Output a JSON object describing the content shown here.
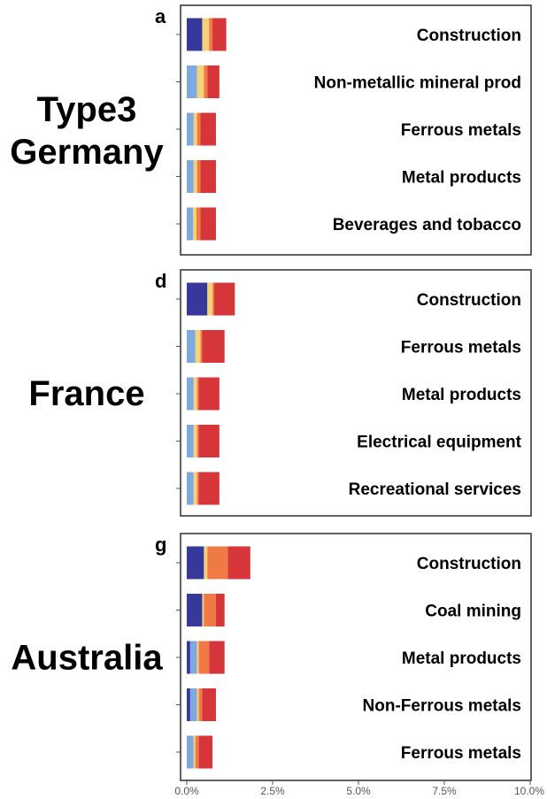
{
  "chart_data": {
    "type": "bar",
    "stacked": true,
    "orientation": "horizontal",
    "x_axis": {
      "min": 0,
      "max": 10,
      "ticks": [
        0,
        2.5,
        5,
        7.5,
        10
      ],
      "tick_labels": [
        "0.0%",
        "2.5%",
        "5.0%",
        "7.5%",
        "10.0%"
      ]
    },
    "segment_colors": [
      "#37399a",
      "#7ea8e0",
      "#f4d27a",
      "#ef7a45",
      "#d6363a"
    ],
    "grid": false,
    "legend": "none",
    "panels": [
      {
        "letter": "a",
        "label_lines": [
          "Type3",
          "Germany"
        ],
        "categories": [
          "Construction",
          "Non-metallic mineral prod",
          "Ferrous metals",
          "Metal products",
          "Beverages and tobacco"
        ],
        "segments": [
          [
            0.45,
            0,
            0.2,
            0.1,
            0.4
          ],
          [
            0,
            0.3,
            0.2,
            0.1,
            0.35
          ],
          [
            0,
            0.2,
            0.1,
            0.1,
            0.45
          ],
          [
            0,
            0.2,
            0.1,
            0.1,
            0.45
          ],
          [
            0,
            0.18,
            0.1,
            0.12,
            0.45
          ]
        ]
      },
      {
        "letter": "d",
        "label_lines": [
          "France"
        ],
        "categories": [
          "Construction",
          "Ferrous metals",
          "Metal products",
          "Electrical equipment",
          "Recreational services"
        ],
        "segments": [
          [
            0.6,
            0,
            0.15,
            0.05,
            0.6
          ],
          [
            0,
            0.25,
            0.15,
            0.05,
            0.65
          ],
          [
            0,
            0.2,
            0.1,
            0.05,
            0.6
          ],
          [
            0,
            0.2,
            0.1,
            0.05,
            0.6
          ],
          [
            0,
            0.2,
            0.1,
            0.05,
            0.6
          ]
        ]
      },
      {
        "letter": "g",
        "label_lines": [
          "Australia"
        ],
        "categories": [
          "Construction",
          "Coal mining",
          "Metal products",
          "Non-Ferrous metals",
          "Ferrous metals"
        ],
        "segments": [
          [
            0.5,
            0,
            0.1,
            0.6,
            0.65
          ],
          [
            0.45,
            0,
            0.05,
            0.35,
            0.25
          ],
          [
            0.1,
            0.2,
            0.05,
            0.3,
            0.45
          ],
          [
            0.1,
            0.2,
            0.05,
            0.1,
            0.4
          ],
          [
            0,
            0.2,
            0.05,
            0.1,
            0.4
          ]
        ]
      }
    ]
  }
}
